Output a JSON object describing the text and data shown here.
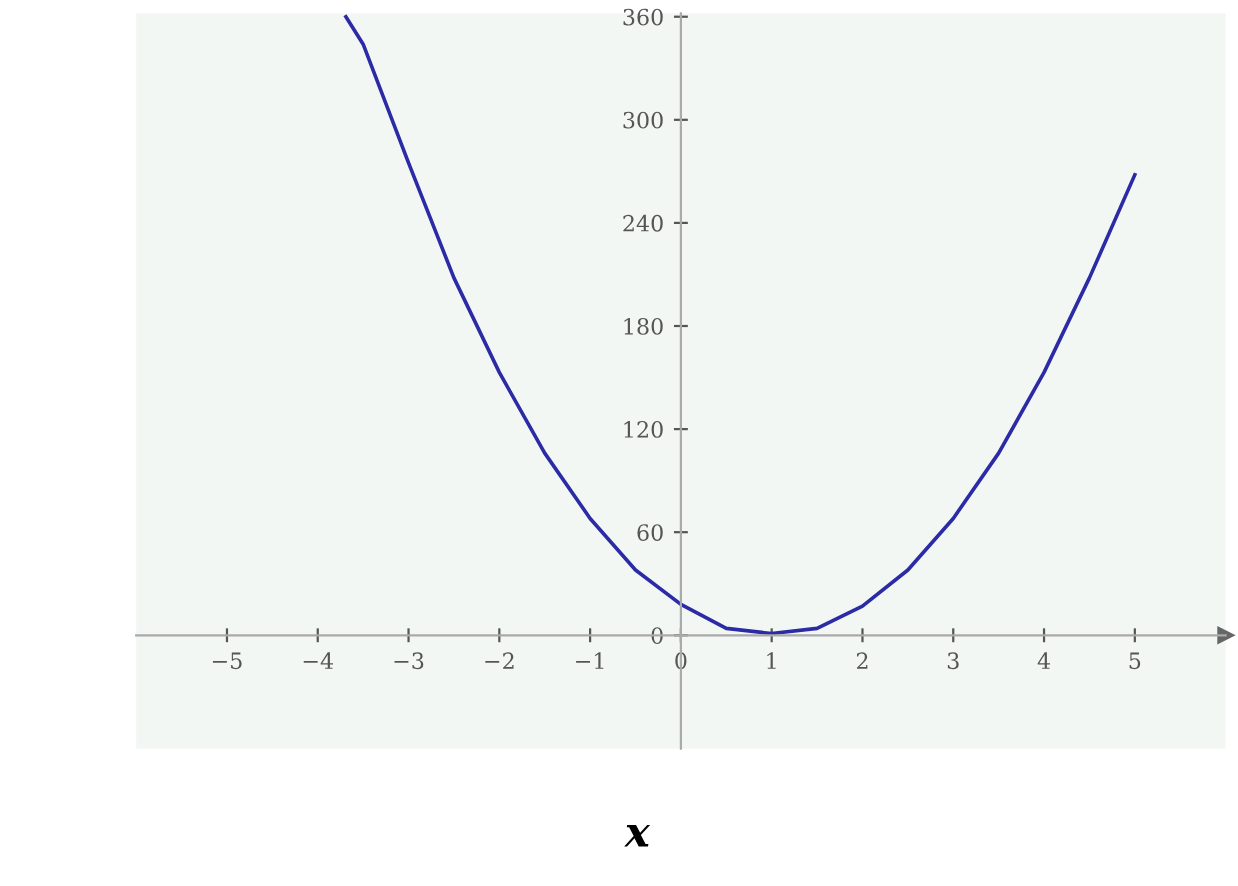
{
  "chart_data": {
    "type": "line",
    "xlabel": "x",
    "x": [
      -3.69,
      -3.5,
      -3,
      -2.5,
      -2,
      -1.5,
      -1,
      -0.5,
      0,
      0.5,
      1,
      1.5,
      2,
      2.5,
      3,
      3.5,
      4,
      4.5,
      5
    ],
    "series": [
      {
        "color": "#2b2ba6",
        "values": [
          360,
          344,
          275,
          208,
          153,
          106,
          68,
          38,
          18,
          4,
          1,
          4,
          17,
          38,
          68,
          106,
          153,
          208,
          268
        ]
      }
    ],
    "xlim": [
      -6,
      6
    ],
    "ylim": [
      -66,
      362
    ],
    "xticks": [
      -5,
      -4,
      -3,
      -2,
      -1,
      0,
      1,
      2,
      3,
      4,
      5
    ],
    "yticks": [
      0,
      60,
      120,
      180,
      240,
      300,
      360
    ],
    "grid": false,
    "marker": "none",
    "line_style": "solid"
  }
}
